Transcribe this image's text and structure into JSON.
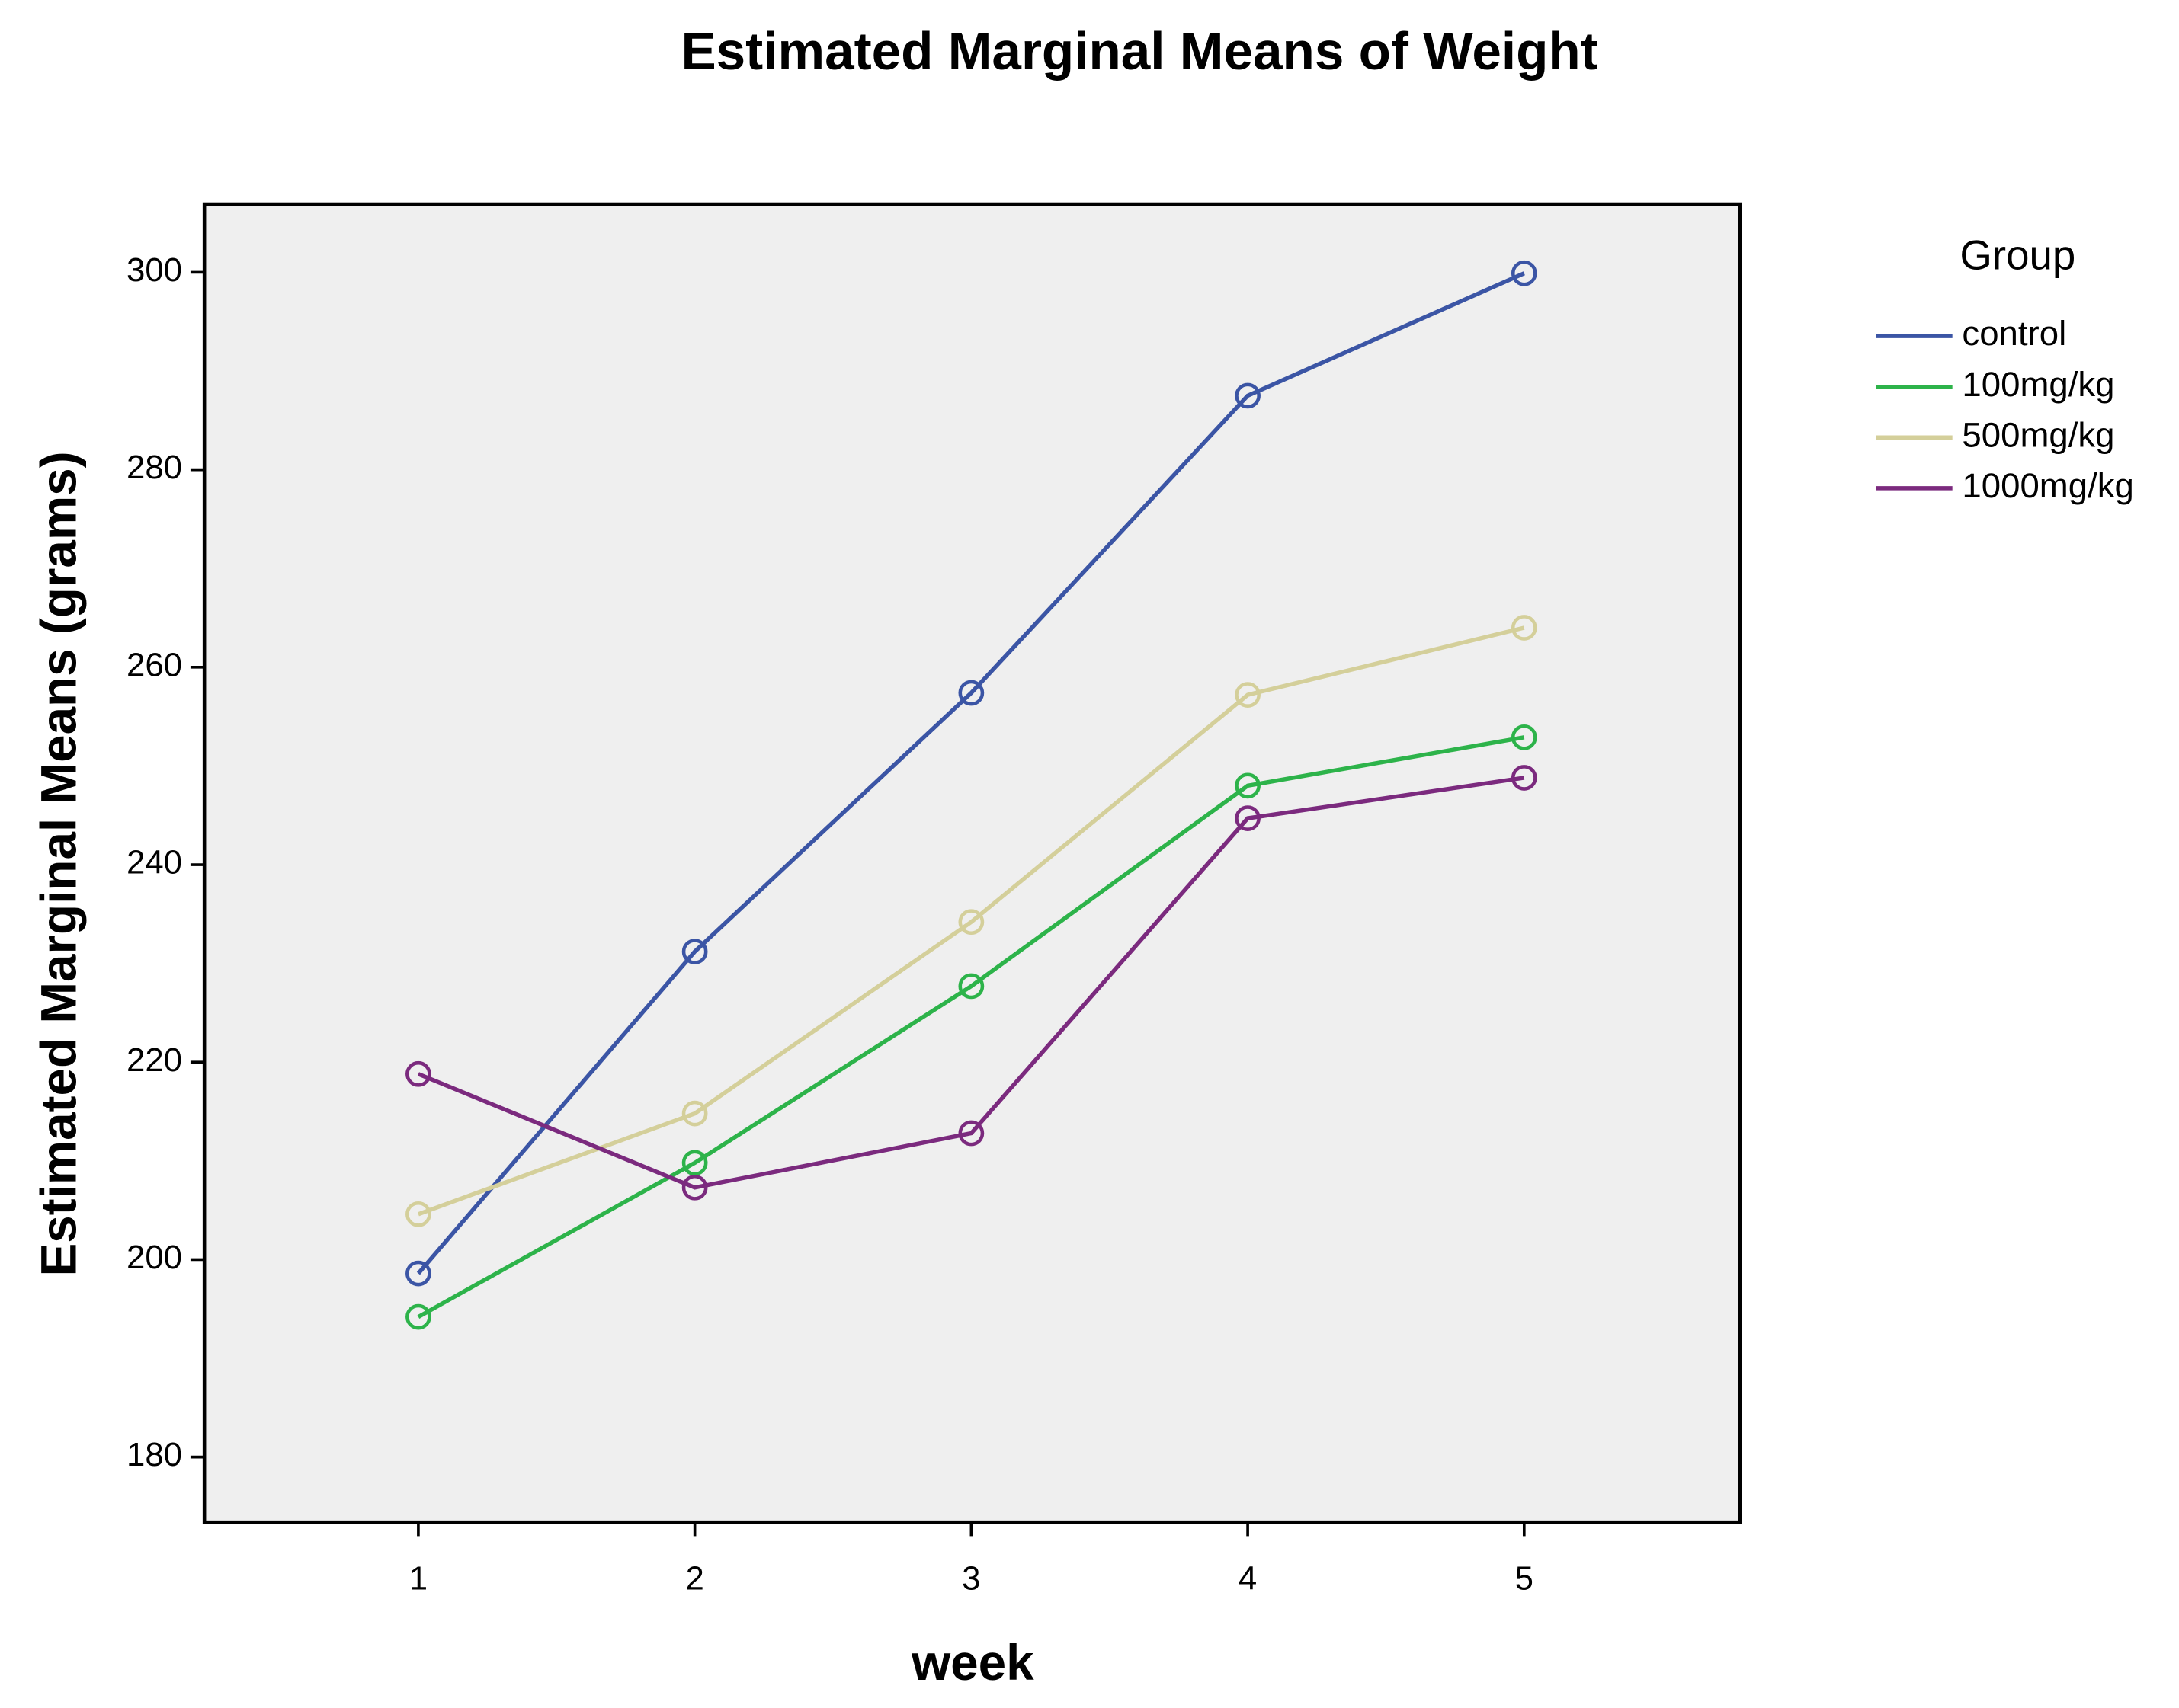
{
  "chart_data": {
    "type": "line",
    "title": "Estimated Marginal Means of Weight",
    "x_label": "week",
    "y_label": "Estimated Marginal Means (grams)",
    "legend_title": "Group",
    "x": [
      1,
      2,
      3,
      4,
      5
    ],
    "xlim": [
      0.226,
      5.78
    ],
    "xticks": [
      1,
      2,
      3,
      4,
      5
    ],
    "ylim": [
      173.4,
      306.9
    ],
    "yticks": [
      180,
      200,
      220,
      240,
      260,
      280,
      300
    ],
    "background": "#efefef",
    "series": [
      {
        "name": "control",
        "color": "#3b55a5",
        "values": [
          198.6,
          231.2,
          257.4,
          287.5,
          299.9
        ]
      },
      {
        "name": "100mg/kg",
        "color": "#2db34a",
        "values": [
          194.2,
          209.8,
          227.7,
          248.0,
          252.9
        ]
      },
      {
        "name": "500mg/kg",
        "color": "#d4cf9a",
        "values": [
          204.6,
          214.8,
          234.2,
          257.2,
          264.0
        ]
      },
      {
        "name": "1000mg/kg",
        "color": "#7b2a7e",
        "values": [
          218.8,
          207.3,
          212.8,
          244.7,
          248.8
        ]
      }
    ]
  }
}
